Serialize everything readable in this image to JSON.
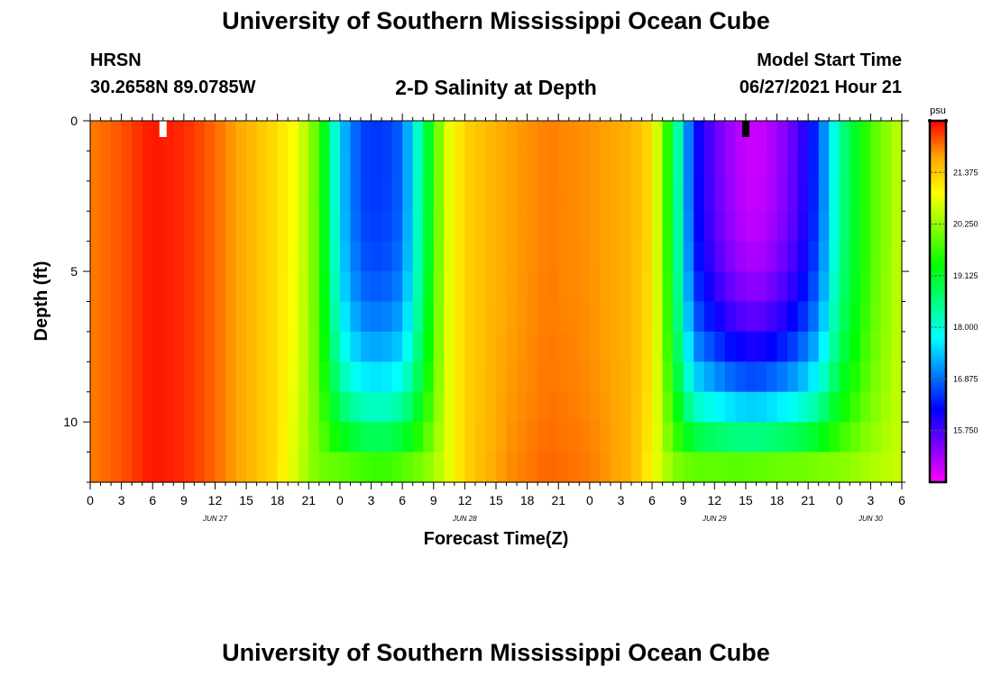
{
  "header": {
    "title": "University of Southern Mississippi Ocean Cube",
    "station": "HRSN",
    "coordinates": "30.2658N  89.0785W",
    "subtitle": "2-D Salinity at Depth",
    "model_start_label": "Model Start Time",
    "model_start_value": "06/27/2021 Hour 21"
  },
  "footer": {
    "title": "University of Southern Mississippi Ocean Cube"
  },
  "chart_data": {
    "type": "heatmap",
    "xlabel": "Forecast Time(Z)",
    "ylabel": "Depth (ft)",
    "y_ticks": [
      "0",
      "5",
      "10"
    ],
    "y_range": [
      0,
      12
    ],
    "x_range_hours": [
      0,
      78
    ],
    "x_tick_labels": [
      "0",
      "3",
      "6",
      "9",
      "12",
      "15",
      "18",
      "21",
      "0",
      "3",
      "6",
      "9",
      "12",
      "15",
      "18",
      "21",
      "0",
      "3",
      "6",
      "9",
      "12",
      "15",
      "18",
      "21",
      "0",
      "3",
      "6"
    ],
    "date_labels": [
      {
        "text": "JUN 27",
        "at_hour": 12
      },
      {
        "text": "JUN 28",
        "at_hour": 36
      },
      {
        "text": "JUN 29",
        "at_hour": 60
      },
      {
        "text": "JUN 30",
        "at_hour": 75
      }
    ],
    "colorbar": {
      "unit": "psu",
      "tick_labels": [
        "21.375",
        "20.250",
        "19.125",
        "18.000",
        "16.875",
        "15.750"
      ],
      "range": [
        14.625,
        22.5
      ],
      "colors": [
        "#ff00ff",
        "#7f00ff",
        "#0000ff",
        "#0080ff",
        "#00ffff",
        "#00ff80",
        "#00ff00",
        "#80ff00",
        "#ffff00",
        "#ffa500",
        "#ff0000"
      ]
    },
    "depth_levels_ft": [
      0,
      1,
      2,
      3,
      4,
      5,
      6,
      7,
      8,
      9,
      10,
      11
    ],
    "profiles": [
      {
        "hour": 0,
        "surface": 21.9,
        "bottom": 21.9
      },
      {
        "hour": 3,
        "surface": 22.1,
        "bottom": 22.1
      },
      {
        "hour": 6,
        "surface": 22.4,
        "bottom": 22.4
      },
      {
        "hour": 9,
        "surface": 22.3,
        "bottom": 22.3
      },
      {
        "hour": 12,
        "surface": 22.0,
        "bottom": 22.0
      },
      {
        "hour": 15,
        "surface": 21.6,
        "bottom": 21.6
      },
      {
        "hour": 18,
        "surface": 21.2,
        "bottom": 21.2
      },
      {
        "hour": 20,
        "surface": 20.8,
        "bottom": 20.6
      },
      {
        "hour": 22,
        "surface": 19.8,
        "bottom": 20.0
      },
      {
        "hour": 24,
        "surface": 17.5,
        "bottom": 19.6
      },
      {
        "hour": 26,
        "surface": 16.6,
        "bottom": 19.3
      },
      {
        "hour": 28,
        "surface": 16.5,
        "bottom": 19.2
      },
      {
        "hour": 30,
        "surface": 16.8,
        "bottom": 19.4
      },
      {
        "hour": 32,
        "surface": 18.6,
        "bottom": 19.9
      },
      {
        "hour": 34,
        "surface": 20.6,
        "bottom": 20.6
      },
      {
        "hour": 36,
        "surface": 21.3,
        "bottom": 21.3
      },
      {
        "hour": 40,
        "surface": 21.7,
        "bottom": 21.8
      },
      {
        "hour": 44,
        "surface": 21.9,
        "bottom": 22.0
      },
      {
        "hour": 48,
        "surface": 21.8,
        "bottom": 21.9
      },
      {
        "hour": 52,
        "surface": 21.6,
        "bottom": 21.6
      },
      {
        "hour": 54,
        "surface": 21.2,
        "bottom": 21.0
      },
      {
        "hour": 56,
        "surface": 19.0,
        "bottom": 20.0
      },
      {
        "hour": 58,
        "surface": 16.3,
        "bottom": 19.4
      },
      {
        "hour": 60,
        "surface": 15.6,
        "bottom": 19.3
      },
      {
        "hour": 62,
        "surface": 15.1,
        "bottom": 19.2
      },
      {
        "hour": 64,
        "surface": 14.9,
        "bottom": 19.2
      },
      {
        "hour": 66,
        "surface": 15.2,
        "bottom": 19.3
      },
      {
        "hour": 68,
        "surface": 15.7,
        "bottom": 19.4
      },
      {
        "hour": 70,
        "surface": 16.6,
        "bottom": 19.6
      },
      {
        "hour": 72,
        "surface": 18.4,
        "bottom": 19.9
      },
      {
        "hour": 75,
        "surface": 19.8,
        "bottom": 20.3
      },
      {
        "hour": 78,
        "surface": 20.6,
        "bottom": 20.6
      }
    ],
    "markers": [
      {
        "hour": 7,
        "color": "#ffffff"
      },
      {
        "hour": 63,
        "color": "#000000"
      }
    ]
  }
}
